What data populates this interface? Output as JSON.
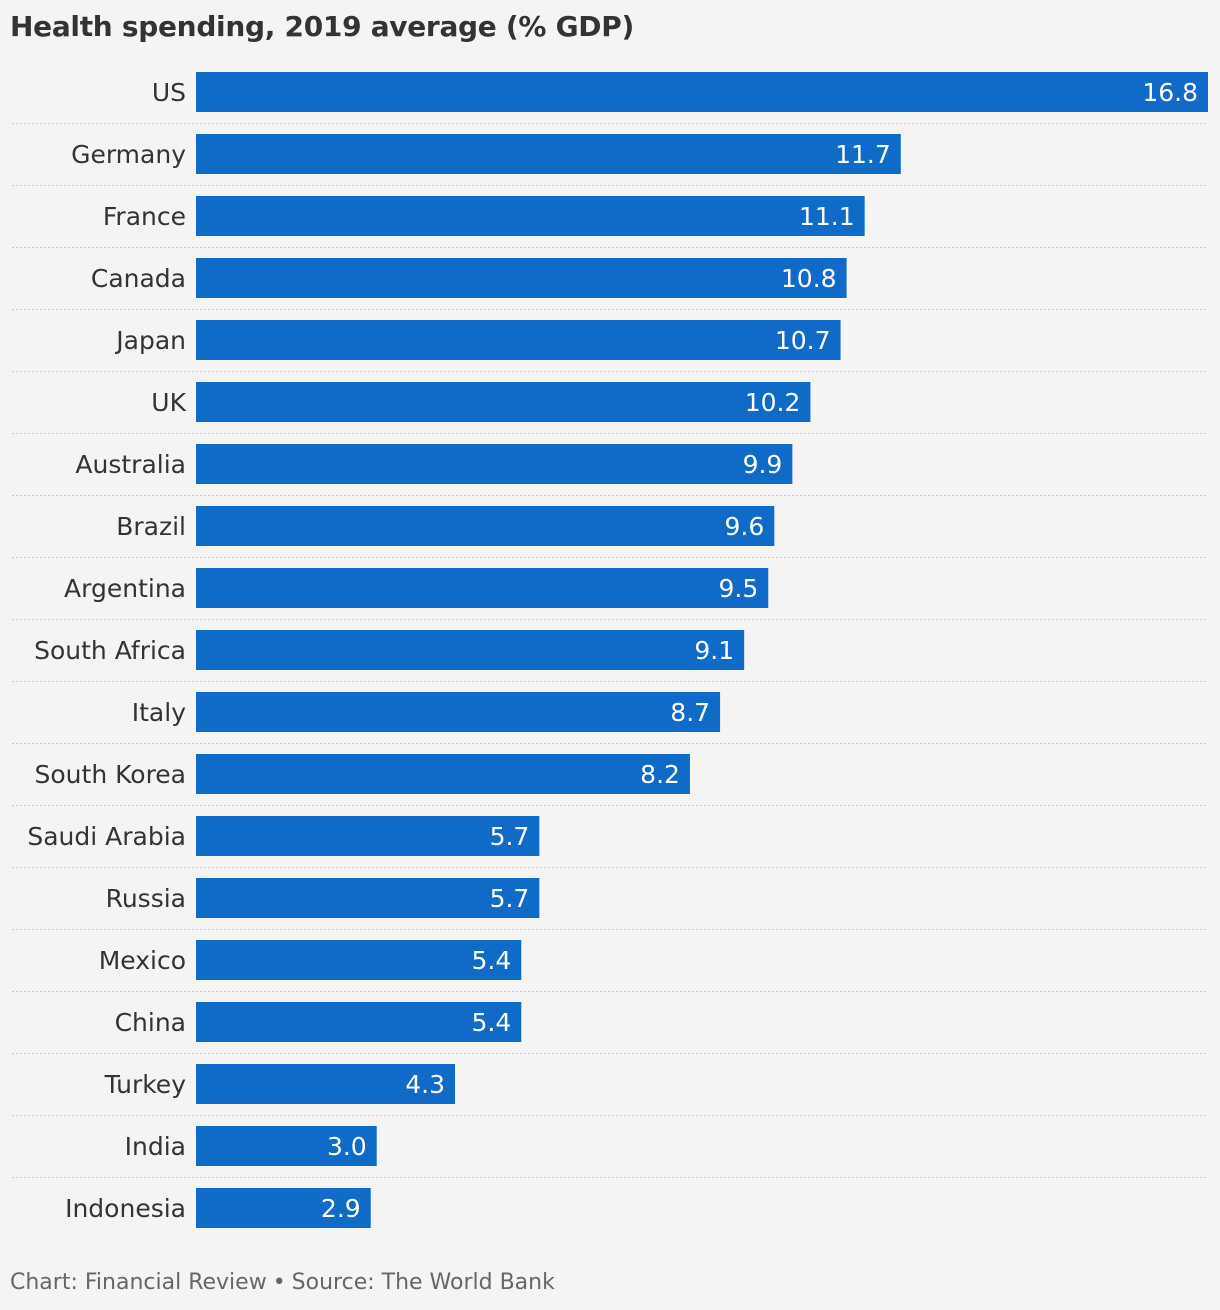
{
  "title": "Health spending, 2019 average (% GDP)",
  "footer": {
    "credit": "Chart: Financial Review",
    "separator": "•",
    "source": "Source: The World Bank"
  },
  "colors": {
    "bar": "#0f6ac8",
    "background": "#f4f4f4",
    "divider": "#c8c8c8"
  },
  "chart_data": {
    "type": "bar",
    "orientation": "horizontal",
    "title": "Health spending, 2019 average (% GDP)",
    "xlabel": "",
    "ylabel": "",
    "xlim": [
      0,
      16.8
    ],
    "grid": false,
    "data_labels": true,
    "categories": [
      "US",
      "Germany",
      "France",
      "Canada",
      "Japan",
      "UK",
      "Australia",
      "Brazil",
      "Argentina",
      "South Africa",
      "Italy",
      "South Korea",
      "Saudi Arabia",
      "Russia",
      "Mexico",
      "China",
      "Turkey",
      "India",
      "Indonesia"
    ],
    "values": [
      16.8,
      11.7,
      11.1,
      10.8,
      10.7,
      10.2,
      9.9,
      9.6,
      9.5,
      9.1,
      8.7,
      8.2,
      5.7,
      5.7,
      5.4,
      5.4,
      4.3,
      3.0,
      2.9
    ],
    "value_labels": [
      "16.8",
      "11.7",
      "11.1",
      "10.8",
      "10.7",
      "10.2",
      "9.9",
      "9.6",
      "9.5",
      "9.1",
      "8.7",
      "8.2",
      "5.7",
      "5.7",
      "5.4",
      "5.4",
      "4.3",
      "3.0",
      "2.9"
    ]
  }
}
